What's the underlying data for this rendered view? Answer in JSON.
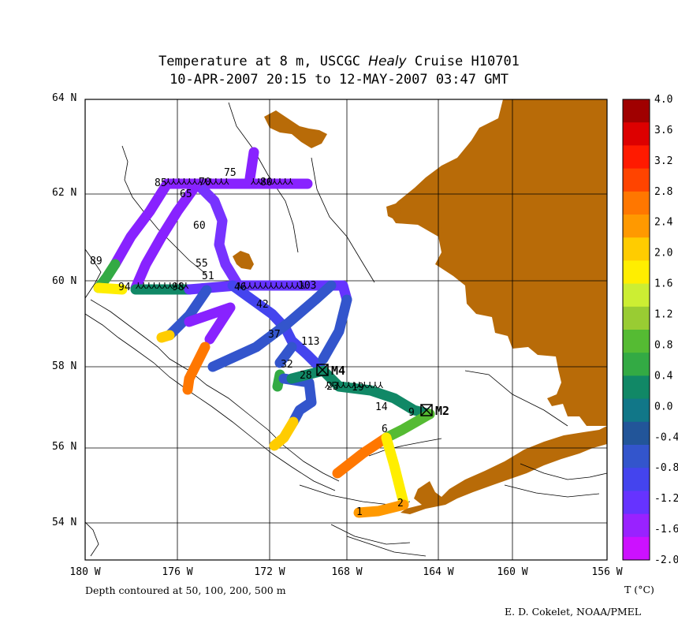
{
  "title": {
    "line1_prefix": "Temperature at 8 m, USCGC ",
    "line1_ship": "Healy",
    "line1_suffix": " Cruise H10701",
    "line2": "10-APR-2007 20:15 to 12-MAY-2007 03:47 GMT"
  },
  "map": {
    "lon_ticks": [
      "180 W",
      "176 W",
      "172 W",
      "168 W",
      "164 W",
      "160 W",
      "156 W"
    ],
    "lat_ticks": [
      "64 N",
      "62 N",
      "60 N",
      "58 N",
      "56 N",
      "54 N"
    ],
    "land_color": "#b86b08",
    "moorings": [
      "M4",
      "M2"
    ],
    "station_labels": [
      "1",
      "2",
      "6",
      "9",
      "14",
      "19",
      "23",
      "28",
      "32",
      "37",
      "42",
      "46",
      "51",
      "55",
      "60",
      "65",
      "70",
      "75",
      "80",
      "85",
      "89",
      "94",
      "98",
      "103",
      "113"
    ]
  },
  "colorbar": {
    "ticks": [
      "4.0",
      "3.6",
      "3.2",
      "2.8",
      "2.4",
      "2.0",
      "1.6",
      "1.2",
      "0.8",
      "0.4",
      "0.0",
      "-0.4",
      "-0.8",
      "-1.2",
      "-1.6",
      "-2.0"
    ],
    "unit_label": "T (°C)",
    "colors": [
      "#a00000",
      "#dd0000",
      "#ff1a00",
      "#ff4400",
      "#ff7700",
      "#ff9900",
      "#ffcc00",
      "#ffee00",
      "#ccee33",
      "#99cc33",
      "#55bb33",
      "#33aa44",
      "#118866",
      "#117788",
      "#225599",
      "#3355cc",
      "#4444ee",
      "#6633ff",
      "#9922ff",
      "#cc11ff"
    ]
  },
  "notes": {
    "depth": "Depth contoured at 50, 100, 200, 500 m",
    "credit": "E. D. Cokelet, NOAA/PMEL"
  }
}
